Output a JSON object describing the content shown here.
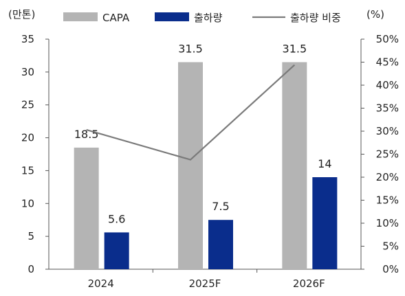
{
  "chart_data": {
    "type": "bar",
    "categories": [
      "2024",
      "2025F",
      "2026F"
    ],
    "series": [
      {
        "name": "CAPA",
        "type": "bar",
        "axis": "left",
        "values": [
          18.5,
          31.5,
          31.5
        ],
        "color": "#b4b4b4",
        "labels": [
          "18.5",
          "31.5",
          "31.5"
        ]
      },
      {
        "name": "출하량",
        "type": "bar",
        "axis": "left",
        "values": [
          5.6,
          7.5,
          14
        ],
        "color": "#0a2d8c",
        "labels": [
          "5.6",
          "7.5",
          "14"
        ]
      },
      {
        "name": "출하량 비중",
        "type": "line",
        "axis": "right",
        "values": [
          30.3,
          23.8,
          44.4
        ],
        "color": "#7a7a7a"
      }
    ],
    "left_axis": {
      "label": "(만톤)",
      "ylim": [
        0,
        35
      ],
      "ticks": [
        "0",
        "5",
        "10",
        "15",
        "20",
        "25",
        "30",
        "35"
      ]
    },
    "right_axis": {
      "label": "(%)",
      "ylim": [
        0,
        50
      ],
      "ticks": [
        "0%",
        "5%",
        "10%",
        "15%",
        "20%",
        "25%",
        "30%",
        "35%",
        "40%",
        "45%",
        "50%"
      ]
    },
    "legend": "top",
    "grid": false
  }
}
